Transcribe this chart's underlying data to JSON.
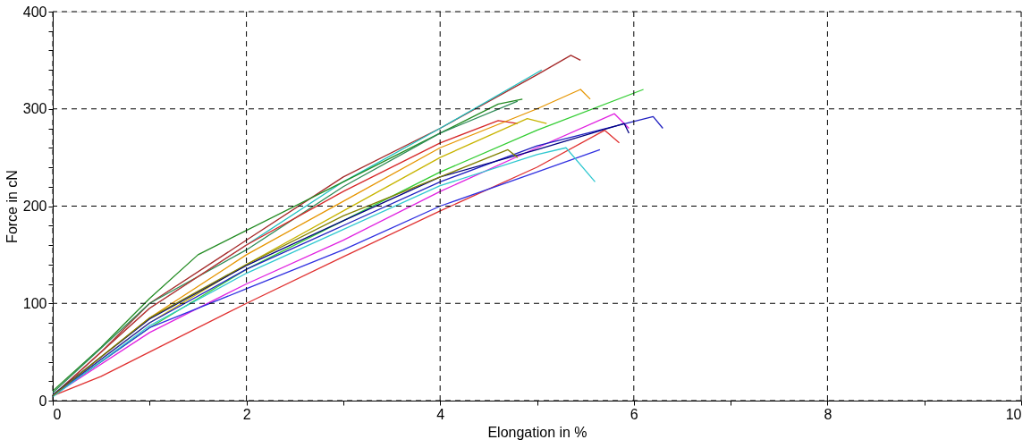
{
  "chart_data": {
    "type": "line",
    "xlabel": "Elongation in %",
    "ylabel": "Force in cN",
    "xlim": [
      0,
      10
    ],
    "ylim": [
      0,
      400
    ],
    "xticks": [
      0,
      {
        "value": 1,
        "label": null
      },
      2,
      {
        "value": 3,
        "label": null
      },
      4,
      {
        "value": 5,
        "label": null
      },
      6,
      {
        "value": 7,
        "label": null
      },
      8,
      {
        "value": 9,
        "label": null
      },
      10
    ],
    "yticks": [
      0,
      {
        "value": 20,
        "label": null
      },
      {
        "value": 40,
        "label": null
      },
      {
        "value": 60,
        "label": null
      },
      {
        "value": 80,
        "label": null
      },
      100,
      {
        "value": 120,
        "label": null
      },
      {
        "value": 140,
        "label": null
      },
      {
        "value": 160,
        "label": null
      },
      {
        "value": 180,
        "label": null
      },
      200,
      {
        "value": 220,
        "label": null
      },
      {
        "value": 240,
        "label": null
      },
      {
        "value": 260,
        "label": null
      },
      {
        "value": 280,
        "label": null
      },
      300,
      {
        "value": 320,
        "label": null
      },
      {
        "value": 340,
        "label": null
      },
      {
        "value": 360,
        "label": null
      },
      {
        "value": 380,
        "label": null
      },
      400
    ],
    "grid": true,
    "line_style": "solid",
    "series": [
      {
        "color": "#a52a2a",
        "x": [
          0,
          0.5,
          1,
          2,
          3,
          4,
          5,
          5.35,
          5.45
        ],
        "values": [
          5,
          50,
          100,
          165,
          230,
          280,
          335,
          355,
          350
        ]
      },
      {
        "color": "#20c0c0",
        "x": [
          0,
          1,
          2,
          3,
          4,
          5.05
        ],
        "values": [
          5,
          95,
          160,
          225,
          280,
          340
        ]
      },
      {
        "color": "#228b22",
        "x": [
          0,
          0.5,
          1,
          1.5,
          2,
          3,
          4,
          4.6,
          4.85
        ],
        "values": [
          10,
          55,
          105,
          150,
          175,
          225,
          275,
          305,
          310
        ]
      },
      {
        "color": "#2e8b57",
        "x": [
          0,
          1,
          2,
          3,
          4,
          4.8
        ],
        "values": [
          8,
          100,
          155,
          220,
          275,
          308
        ]
      },
      {
        "color": "#d62728",
        "x": [
          0,
          1,
          2,
          3,
          4,
          4.6,
          4.8
        ],
        "values": [
          5,
          95,
          160,
          215,
          265,
          288,
          285
        ]
      },
      {
        "color": "#e69500",
        "x": [
          0,
          1,
          2,
          3,
          4,
          5,
          5.45,
          5.55
        ],
        "values": [
          5,
          85,
          150,
          205,
          260,
          300,
          320,
          310
        ]
      },
      {
        "color": "#c8b400",
        "x": [
          0,
          1,
          2,
          3,
          4,
          4.9,
          5.1
        ],
        "values": [
          5,
          80,
          140,
          195,
          250,
          290,
          285
        ]
      },
      {
        "color": "#32cd32",
        "x": [
          0,
          1,
          2,
          3,
          4,
          5,
          6.1
        ],
        "values": [
          5,
          75,
          135,
          185,
          235,
          278,
          320
        ]
      },
      {
        "color": "#e020e0",
        "x": [
          0,
          1,
          2,
          3,
          4,
          5,
          5.8,
          5.95
        ],
        "values": [
          5,
          70,
          120,
          165,
          215,
          260,
          295,
          280
        ]
      },
      {
        "color": "#2020c0",
        "x": [
          0,
          1,
          2,
          3,
          4,
          5,
          6.2,
          6.3
        ],
        "values": [
          5,
          80,
          135,
          180,
          225,
          262,
          292,
          280
        ]
      },
      {
        "color": "#000080",
        "x": [
          0,
          1,
          2,
          3,
          4,
          5,
          5.9,
          5.95
        ],
        "values": [
          6,
          84,
          139,
          185,
          230,
          258,
          285,
          275
        ]
      },
      {
        "color": "#e03030",
        "x": [
          0,
          0.5,
          1,
          2,
          3,
          4,
          5,
          5.7,
          5.85
        ],
        "values": [
          5,
          25,
          50,
          100,
          148,
          195,
          240,
          278,
          265
        ]
      },
      {
        "color": "#3030e0",
        "x": [
          0,
          1,
          2,
          3,
          4,
          5,
          5.65
        ],
        "values": [
          5,
          75,
          115,
          155,
          200,
          235,
          258
        ]
      },
      {
        "color": "#30c8d0",
        "x": [
          0,
          1,
          2,
          3,
          4,
          5,
          5.3,
          5.6
        ],
        "values": [
          4,
          77,
          131,
          176,
          221,
          253,
          260,
          225
        ]
      },
      {
        "color": "#808000",
        "x": [
          0,
          1,
          2,
          3,
          4,
          4.7,
          4.8
        ],
        "values": [
          5,
          85,
          140,
          190,
          230,
          258,
          250
        ]
      }
    ]
  }
}
